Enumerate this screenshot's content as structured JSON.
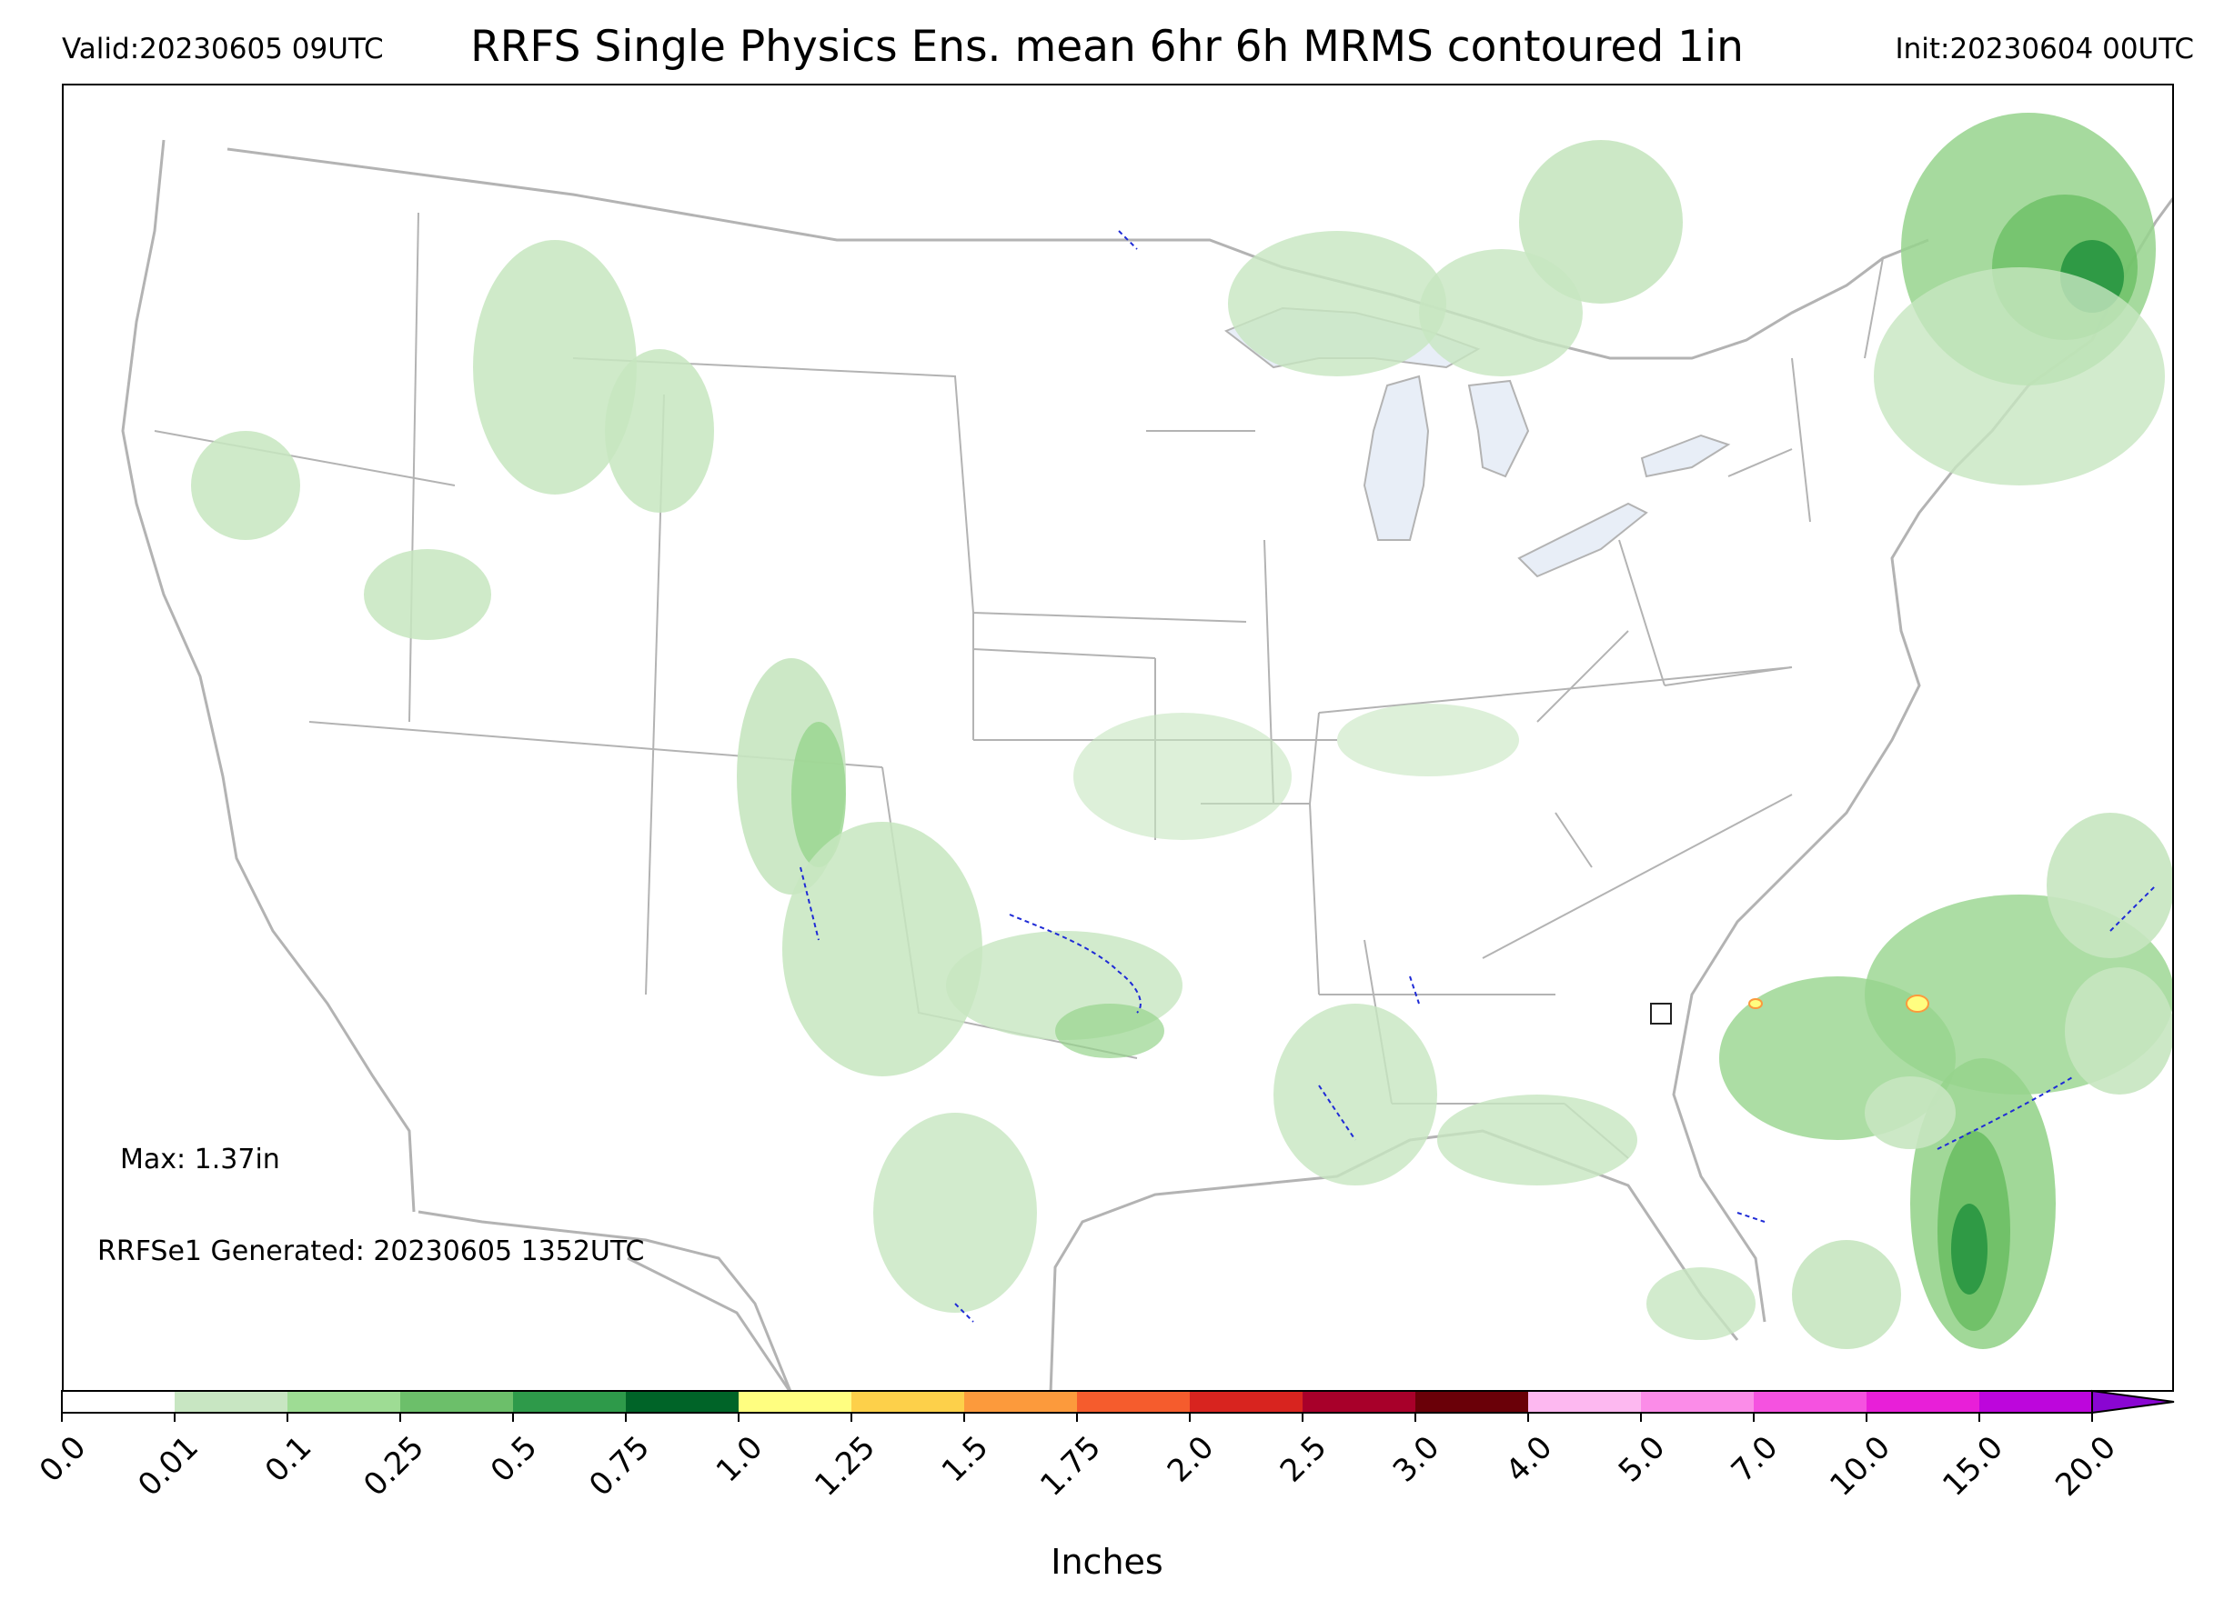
{
  "header": {
    "valid": "Valid:20230605 09UTC",
    "title": "RRFS Single Physics Ens. mean 6hr 6h MRMS contoured 1in",
    "init": "Init:20230604 00UTC"
  },
  "map": {
    "max_text": "Max: 1.37in",
    "generated_text": "RRFSe1 Generated: 20230605 1352UTC",
    "colors": {
      "boundary": "#b3b3b3",
      "lake": "#e8eef7",
      "contour": "#1f2bd6",
      "light_green": "#c7e6c0",
      "mid_green": "#97d48d",
      "green": "#6cbf64",
      "dark_green": "#2f9a45",
      "darkest_green": "#00641e"
    }
  },
  "colorbar": {
    "label": "Inches",
    "ticks": [
      "0.0",
      "0.01",
      "0.1",
      "0.25",
      "0.5",
      "0.75",
      "1.0",
      "1.25",
      "1.5",
      "1.75",
      "2.0",
      "2.5",
      "3.0",
      "4.0",
      "5.0",
      "7.0",
      "10.0",
      "15.0",
      "20.0"
    ],
    "colors": [
      "#ffffff",
      "#c8e6c2",
      "#9edc94",
      "#6cbf6a",
      "#2e9a4a",
      "#006428",
      "#fffe80",
      "#fdd04a",
      "#fc9a3c",
      "#f55c2d",
      "#d8241f",
      "#a8002a",
      "#6a0008",
      "#fdb8f0",
      "#fb8ce8",
      "#f552e0",
      "#e81fd8",
      "#bd06dc",
      "#8a06d2"
    ]
  }
}
